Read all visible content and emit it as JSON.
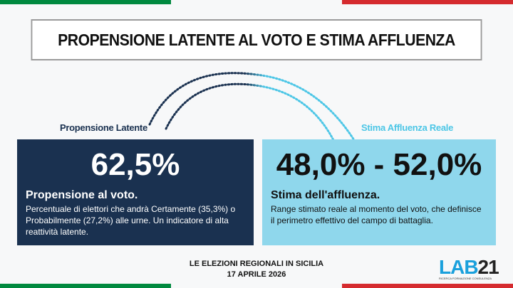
{
  "title": "PROPENSIONE LATENTE AL VOTO E STIMA AFFLUENZA",
  "left": {
    "label": "Propensione Latente",
    "value": "62,5%",
    "heading": "Propensione al voto.",
    "description": "Percentuale di elettori che andrà Certamente (35,3%) o Probabilmente (27,2%) alle urne. Un indicatore di alta reattività latente."
  },
  "right": {
    "label": "Stima Affluenza Reale",
    "value": "48,0% - 52,0%",
    "heading": "Stima dell'affluenza.",
    "description": "Range stimato reale al momento del voto, che definisce il perimetro effettivo del campo di battaglia."
  },
  "footer": {
    "line1": "LE ELEZIONI REGIONALI IN SICILIA",
    "line2": "17 APRILE 2026"
  },
  "logo": {
    "lab": "LAB",
    "num": "21",
    "tagline": "RICERCA FORMAZIONE CONSULENZA"
  },
  "colors": {
    "green": "#00893f",
    "red": "#d52b2f",
    "navy": "#1a3150",
    "cyan": "#4cc6e6"
  }
}
